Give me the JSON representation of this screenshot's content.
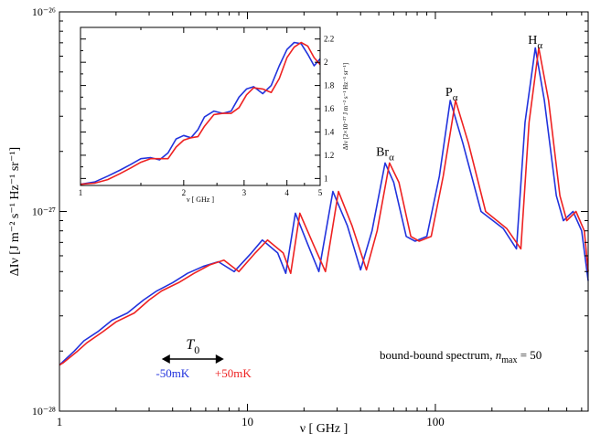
{
  "chart_data": [
    {
      "type": "line",
      "xlabel": "ν [ GHz ]",
      "ylabel": "ΔIν [J m⁻² s⁻¹ Hz⁻¹ sr⁻¹]",
      "x_scale": "log",
      "y_scale": "log",
      "xlim": [
        1,
        650
      ],
      "ylim": [
        1e-28,
        1e-26
      ],
      "x_ticks": [
        {
          "value": 1,
          "label": "1"
        },
        {
          "value": 10,
          "label": "10"
        },
        {
          "value": 100,
          "label": "100"
        }
      ],
      "y_ticks": [
        {
          "value": 1e-28,
          "label": "10⁻²⁸"
        },
        {
          "value": 1e-27,
          "label": "10⁻²⁷"
        },
        {
          "value": 1e-26,
          "label": "10⁻²⁶"
        }
      ],
      "series": [
        {
          "name": "-50mK",
          "color": "#2233dd",
          "points": [
            [
              1,
              1.7e-28
            ],
            [
              1.05,
              1.78e-28
            ],
            [
              1.2,
              2e-28
            ],
            [
              1.35,
              2.25e-28
            ],
            [
              1.6,
              2.5e-28
            ],
            [
              1.9,
              2.85e-28
            ],
            [
              2.3,
              3.1e-28
            ],
            [
              2.8,
              3.6e-28
            ],
            [
              3.3,
              4e-28
            ],
            [
              4.0,
              4.4e-28
            ],
            [
              4.8,
              4.9e-28
            ],
            [
              5.8,
              5.3e-28
            ],
            [
              7.0,
              5.6e-28
            ],
            [
              8.5,
              5e-28
            ],
            [
              10.5,
              6.2e-28
            ],
            [
              12.0,
              7.2e-28
            ],
            [
              14.5,
              6.2e-28
            ],
            [
              16.0,
              4.9e-28
            ],
            [
              18.0,
              9.8e-28
            ],
            [
              21.0,
              6.8e-28
            ],
            [
              24.0,
              5e-28
            ],
            [
              28.5,
              1.26e-27
            ],
            [
              34.0,
              8.5e-28
            ],
            [
              40.0,
              5.1e-28
            ],
            [
              46.0,
              8e-28
            ],
            [
              54.0,
              1.75e-27
            ],
            [
              60.0,
              1.4e-27
            ],
            [
              70.0,
              7.5e-28
            ],
            [
              78.0,
              7.1e-28
            ],
            [
              90.0,
              7.5e-28
            ],
            [
              105.0,
              1.5e-27
            ],
            [
              120.0,
              3.6e-27
            ],
            [
              140.0,
              2.2e-27
            ],
            [
              175.0,
              1e-27
            ],
            [
              230.0,
              8.2e-28
            ],
            [
              270.0,
              6.5e-28
            ],
            [
              300.0,
              2.8e-27
            ],
            [
              340.0,
              6.6e-27
            ],
            [
              380.0,
              3.6e-27
            ],
            [
              440.0,
              1.2e-27
            ],
            [
              480.0,
              9e-28
            ],
            [
              540.0,
              1e-27
            ],
            [
              600.0,
              8e-28
            ],
            [
              650.0,
              4.5e-28
            ]
          ]
        },
        {
          "name": "+50mK",
          "color": "#ee2222",
          "points": [
            [
              1,
              1.7e-28
            ],
            [
              1.05,
              1.75e-28
            ],
            [
              1.25,
              2e-28
            ],
            [
              1.4,
              2.2e-28
            ],
            [
              1.7,
              2.5e-28
            ],
            [
              2.0,
              2.8e-28
            ],
            [
              2.5,
              3.1e-28
            ],
            [
              3.0,
              3.6e-28
            ],
            [
              3.5,
              4e-28
            ],
            [
              4.3,
              4.4e-28
            ],
            [
              5.2,
              4.9e-28
            ],
            [
              6.3,
              5.4e-28
            ],
            [
              7.5,
              5.7e-28
            ],
            [
              9.0,
              5e-28
            ],
            [
              11.0,
              6.2e-28
            ],
            [
              12.8,
              7.2e-28
            ],
            [
              15.5,
              6.2e-28
            ],
            [
              17.0,
              4.9e-28
            ],
            [
              19.0,
              9.8e-28
            ],
            [
              22.5,
              6.8e-28
            ],
            [
              26.0,
              5e-28
            ],
            [
              30.5,
              1.26e-27
            ],
            [
              36.0,
              8.5e-28
            ],
            [
              43.0,
              5.1e-28
            ],
            [
              49.0,
              8e-28
            ],
            [
              57.0,
              1.75e-27
            ],
            [
              64.0,
              1.4e-27
            ],
            [
              74.0,
              7.5e-28
            ],
            [
              82.0,
              7.1e-28
            ],
            [
              95.0,
              7.5e-28
            ],
            [
              110.0,
              1.5e-27
            ],
            [
              128.0,
              3.6e-27
            ],
            [
              150.0,
              2.2e-27
            ],
            [
              185.0,
              1e-27
            ],
            [
              240.0,
              8.2e-28
            ],
            [
              285.0,
              6.5e-28
            ],
            [
              315.0,
              2.8e-27
            ],
            [
              355.0,
              6.6e-27
            ],
            [
              400.0,
              3.6e-27
            ],
            [
              460.0,
              1.2e-27
            ],
            [
              500.0,
              9e-28
            ],
            [
              560.0,
              1e-27
            ],
            [
              620.0,
              8e-28
            ],
            [
              650.0,
              5e-28
            ]
          ]
        }
      ],
      "annotations": {
        "lines": [
          {
            "label": "H",
            "sub": "α",
            "x": 340,
            "y": 6.9e-27
          },
          {
            "label": "P",
            "sub": "α",
            "x": 122,
            "y": 3.8e-27
          },
          {
            "label": "Br",
            "sub": "α",
            "x": 54,
            "y": 1.9e-27
          }
        ],
        "t0": {
          "label": "T",
          "sub": "0",
          "x_from": 3.5,
          "x_to": 7.5
        },
        "shift_minus": "-50mK",
        "shift_plus": "+50mK",
        "spectrum_label": "bound-bound spectrum, ",
        "nmax_symbol": "n",
        "nmax_sub": "max",
        "nmax_value": " = 50"
      }
    },
    {
      "type": "line",
      "xlabel": "ν [ GHz ]",
      "ylabel": "ΔIν [2×10⁻²⁷ J m⁻² s⁻¹ Hz⁻¹ sr⁻¹]",
      "x_scale": "log",
      "xlim": [
        1,
        5
      ],
      "ylim": [
        0.94,
        2.3
      ],
      "x_ticks": [
        {
          "value": 1,
          "label": "1"
        },
        {
          "value": 2,
          "label": "2"
        },
        {
          "value": 3,
          "label": "3"
        },
        {
          "value": 4,
          "label": "4"
        },
        {
          "value": 5,
          "label": "5"
        }
      ],
      "y_ticks": [
        {
          "value": 1,
          "label": "1"
        },
        {
          "value": 1.2,
          "label": "1.2"
        },
        {
          "value": 1.4,
          "label": "1.4"
        },
        {
          "value": 1.6,
          "label": "1.6"
        },
        {
          "value": 1.8,
          "label": "1.8"
        },
        {
          "value": 2,
          "label": "2"
        },
        {
          "value": 2.2,
          "label": "2.2"
        }
      ],
      "series": [
        {
          "name": "-50mK",
          "color": "#2233dd",
          "points": [
            [
              1,
              0.95
            ],
            [
              1.1,
              0.97
            ],
            [
              1.2,
              1.02
            ],
            [
              1.3,
              1.07
            ],
            [
              1.4,
              1.12
            ],
            [
              1.5,
              1.17
            ],
            [
              1.6,
              1.18
            ],
            [
              1.7,
              1.16
            ],
            [
              1.8,
              1.22
            ],
            [
              1.9,
              1.34
            ],
            [
              2.0,
              1.37
            ],
            [
              2.1,
              1.35
            ],
            [
              2.2,
              1.42
            ],
            [
              2.3,
              1.53
            ],
            [
              2.45,
              1.58
            ],
            [
              2.6,
              1.56
            ],
            [
              2.75,
              1.58
            ],
            [
              2.9,
              1.7
            ],
            [
              3.05,
              1.77
            ],
            [
              3.2,
              1.79
            ],
            [
              3.4,
              1.73
            ],
            [
              3.6,
              1.8
            ],
            [
              3.8,
              1.97
            ],
            [
              4.0,
              2.11
            ],
            [
              4.2,
              2.17
            ],
            [
              4.4,
              2.16
            ],
            [
              4.6,
              2.07
            ],
            [
              4.8,
              1.97
            ],
            [
              5.0,
              2.03
            ]
          ]
        },
        {
          "name": "+50mK",
          "color": "#ee2222",
          "points": [
            [
              1,
              0.95
            ],
            [
              1.1,
              0.96
            ],
            [
              1.2,
              0.99
            ],
            [
              1.3,
              1.04
            ],
            [
              1.4,
              1.09
            ],
            [
              1.5,
              1.14
            ],
            [
              1.6,
              1.17
            ],
            [
              1.7,
              1.17
            ],
            [
              1.8,
              1.17
            ],
            [
              1.9,
              1.27
            ],
            [
              2.0,
              1.33
            ],
            [
              2.1,
              1.35
            ],
            [
              2.2,
              1.36
            ],
            [
              2.3,
              1.45
            ],
            [
              2.45,
              1.55
            ],
            [
              2.6,
              1.56
            ],
            [
              2.75,
              1.56
            ],
            [
              2.9,
              1.61
            ],
            [
              3.05,
              1.72
            ],
            [
              3.2,
              1.78
            ],
            [
              3.4,
              1.77
            ],
            [
              3.6,
              1.74
            ],
            [
              3.8,
              1.86
            ],
            [
              4.0,
              2.04
            ],
            [
              4.2,
              2.13
            ],
            [
              4.4,
              2.17
            ],
            [
              4.6,
              2.14
            ],
            [
              4.8,
              2.04
            ],
            [
              5.0,
              1.98
            ]
          ]
        }
      ]
    }
  ]
}
